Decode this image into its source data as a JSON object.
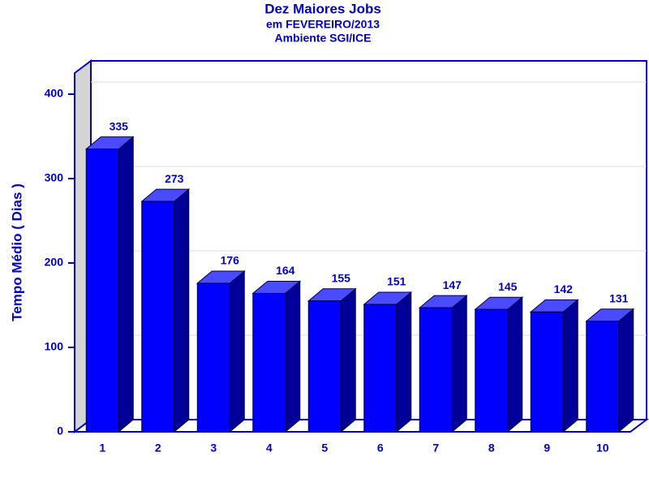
{
  "chart_data": {
    "type": "bar3d",
    "title": "Dez Maiores Jobs",
    "subtitle": [
      "em FEVEREIRO/2013",
      "Ambiente SGI/ICE"
    ],
    "y_label": "Tempo Médio ( Dias )",
    "categories": [
      "1",
      "2",
      "3",
      "4",
      "5",
      "6",
      "7",
      "8",
      "9",
      "10"
    ],
    "values": [
      335,
      273,
      176,
      164,
      155,
      151,
      147,
      145,
      142,
      131
    ],
    "color": "#0000ff",
    "ylim": [
      0,
      425
    ],
    "yticks": [
      0,
      100,
      200,
      300,
      400
    ],
    "grid": true
  }
}
